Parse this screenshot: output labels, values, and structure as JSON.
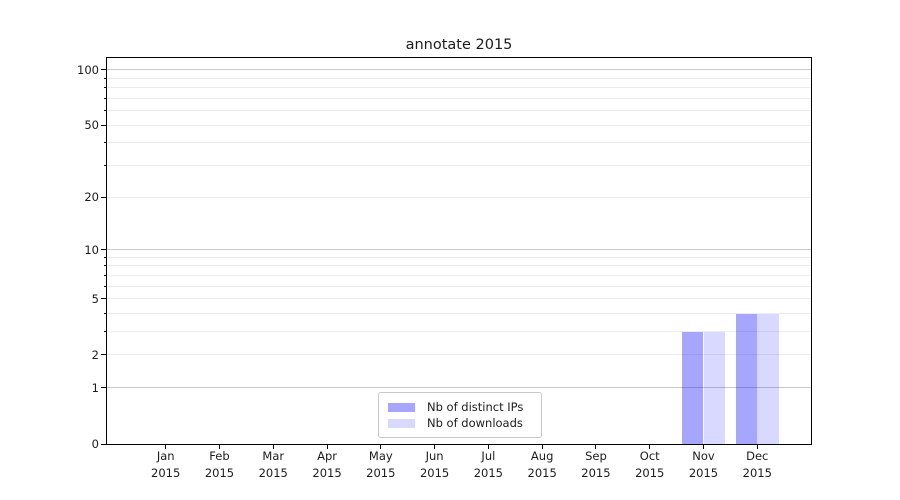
{
  "chart_data": {
    "type": "bar",
    "title": "annotate 2015",
    "categories": [
      "Jan",
      "Feb",
      "Mar",
      "Apr",
      "May",
      "Jun",
      "Jul",
      "Aug",
      "Sep",
      "Oct",
      "Nov",
      "Dec"
    ],
    "category_year": "2015",
    "series": [
      {
        "name": "Nb of distinct IPs",
        "color": "#0000ff59",
        "legend_color": "#a6a6ff",
        "values": [
          0,
          0,
          0,
          0,
          0,
          0,
          0,
          0,
          0,
          0,
          3,
          4
        ]
      },
      {
        "name": "Nb of downloads",
        "color": "#0000ff26",
        "legend_color": "#d9d9ff",
        "values": [
          0,
          0,
          0,
          0,
          0,
          0,
          0,
          0,
          0,
          0,
          3,
          4
        ]
      }
    ],
    "yscale": "log1p",
    "ylim": [
      0,
      116
    ],
    "yticks": [
      0,
      1,
      2,
      5,
      10,
      20,
      50,
      100
    ],
    "grid": {
      "major_values": [
        1,
        10,
        100
      ],
      "minor_values": [
        2,
        3,
        4,
        5,
        6,
        7,
        8,
        9,
        20,
        30,
        40,
        50,
        60,
        70,
        80,
        90
      ],
      "major_color": "#c9c9c9",
      "minor_color": "#ededed"
    },
    "legend": {
      "position": "lower center"
    },
    "axis_color": "#000000",
    "text_color": "#1c1c1c",
    "background_color": "#ffffff"
  }
}
